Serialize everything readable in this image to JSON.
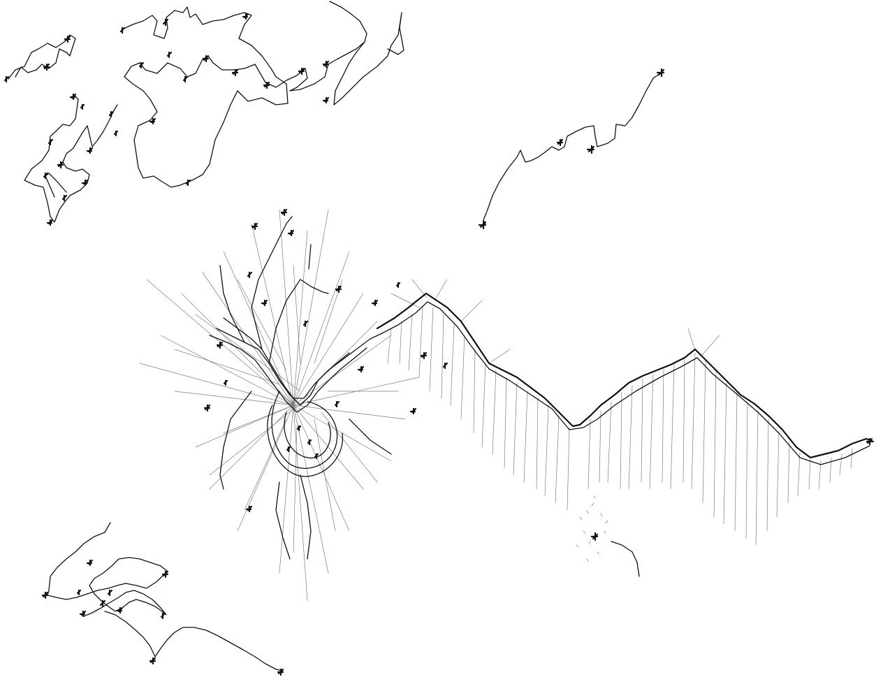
{
  "artwork": {
    "medium": "ink drawing",
    "colors": {
      "ink": "#111111",
      "paper": "#ffffff"
    }
  }
}
